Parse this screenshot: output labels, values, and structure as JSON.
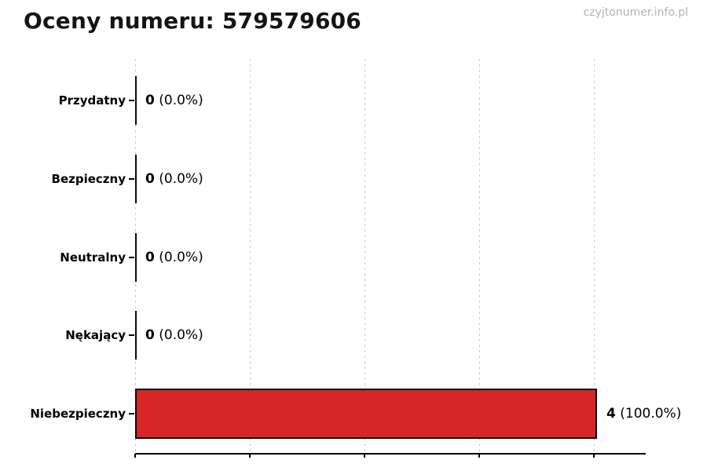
{
  "header": {
    "title": "Oceny numeru: 579579606",
    "watermark": "czyjtonumer.info.pl"
  },
  "chart_data": {
    "type": "bar",
    "orientation": "horizontal",
    "title": "Oceny numeru: 579579606",
    "categories": [
      "Przydatny",
      "Bezpieczny",
      "Neutralny",
      "Nękający",
      "Niebezpieczny"
    ],
    "values": [
      0,
      0,
      0,
      0,
      4
    ],
    "percents": [
      "0.0%",
      "0.0%",
      "0.0%",
      "0.0%",
      "100.0%"
    ],
    "value_labels": [
      "0 (0.0%)",
      "0 (0.0%)",
      "0 (0.0%)",
      "0 (0.0%)",
      "4 (100.0%)"
    ],
    "bar_color": "#d62728",
    "bar_edge_color": "#0a0a0a",
    "xlim": [
      0,
      4.45
    ],
    "x_ticks": [
      0,
      1,
      2,
      3,
      4
    ],
    "x_tick_labels_visible": false,
    "grid": "dashed-vertical",
    "gridline_color": "#cccccc",
    "legend": "none"
  }
}
